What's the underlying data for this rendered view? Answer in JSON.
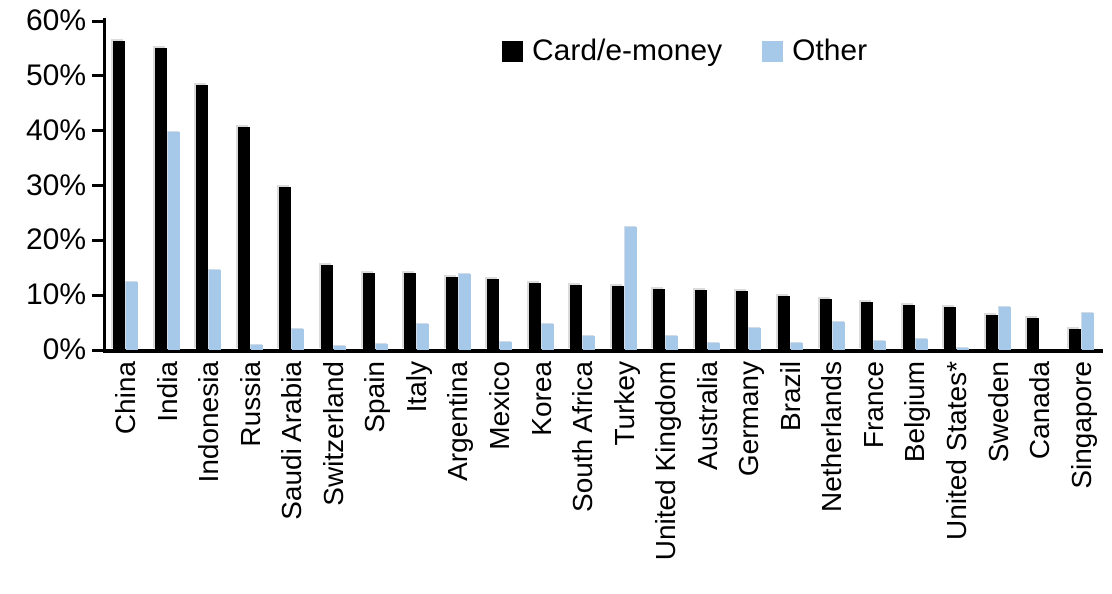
{
  "chart_data": {
    "type": "bar",
    "title": "",
    "categories": [
      "China",
      "India",
      "Indonesia",
      "Russia",
      "Saudi Arabia",
      "Switzerland",
      "Spain",
      "Italy",
      "Argentina",
      "Mexico",
      "Korea",
      "South Africa",
      "Turkey",
      "United Kingdom",
      "Australia",
      "Germany",
      "Brazil",
      "Netherlands",
      "France",
      "Belgium",
      "United States*",
      "Sweden",
      "Canada",
      "Singapore"
    ],
    "series": [
      {
        "name": "Card/e-money",
        "color": "#000000",
        "values": [
          56.3,
          55.1,
          48.3,
          40.6,
          29.8,
          15.5,
          14.1,
          14.0,
          13.4,
          13.0,
          12.3,
          11.8,
          11.7,
          11.2,
          11.0,
          10.7,
          9.9,
          9.3,
          8.8,
          8.3,
          7.9,
          6.4,
          5.9,
          3.9
        ]
      },
      {
        "name": "Other",
        "color": "#A6C9E9",
        "values": [
          12.4,
          39.7,
          14.6,
          1.0,
          3.8,
          0.8,
          1.1,
          4.7,
          13.9,
          1.5,
          4.8,
          2.6,
          22.5,
          2.6,
          1.2,
          4.1,
          1.3,
          5.1,
          1.6,
          2.1,
          0.4,
          7.9,
          0,
          6.8
        ]
      }
    ],
    "xlabel": "",
    "ylabel": "",
    "ylim": [
      0,
      60
    ],
    "yticks": [
      0,
      10,
      20,
      30,
      40,
      50,
      60
    ],
    "ytick_suffix": "%",
    "grid": false,
    "legend_position": "top-center",
    "x_label_rotation": -90
  },
  "legend": {
    "card_label": "Card/e-money",
    "other_label": "Other"
  },
  "colors": {
    "card": "#000000",
    "other": "#A6C9E9",
    "axis": "#000000",
    "background": "#ffffff"
  }
}
